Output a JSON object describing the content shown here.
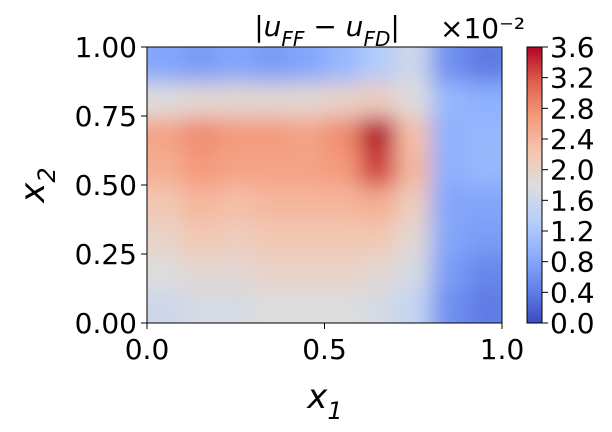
{
  "chart_data": {
    "type": "heatmap",
    "title_parts": [
      "|u",
      "FF",
      " − u",
      "FD",
      "|"
    ],
    "xlabel_parts": [
      "x",
      "1"
    ],
    "ylabel_parts": [
      "x",
      "2"
    ],
    "colorbar_offset": "×10⁻²",
    "colormap": "coolwarm",
    "x": [
      0.05,
      0.15,
      0.25,
      0.35,
      0.45,
      0.55,
      0.65,
      0.75,
      0.85,
      0.95
    ],
    "y": [
      0.0625,
      0.1875,
      0.3125,
      0.4375,
      0.5625,
      0.6875,
      0.8125,
      0.9375
    ],
    "z": [
      [
        1.6,
        1.7,
        1.7,
        1.8,
        1.8,
        1.8,
        1.7,
        1.5,
        0.6,
        0.4
      ],
      [
        1.8,
        1.9,
        1.9,
        2.0,
        2.0,
        2.0,
        1.9,
        1.7,
        0.7,
        0.5
      ],
      [
        2.0,
        2.2,
        2.1,
        2.2,
        2.2,
        2.2,
        2.2,
        1.9,
        0.8,
        0.7
      ],
      [
        2.2,
        2.4,
        2.3,
        2.4,
        2.4,
        2.4,
        2.5,
        2.1,
        0.8,
        0.8
      ],
      [
        2.5,
        2.7,
        2.6,
        2.6,
        2.6,
        2.7,
        3.3,
        2.4,
        0.9,
        1.0
      ],
      [
        2.6,
        2.8,
        2.7,
        2.7,
        2.6,
        2.8,
        3.6,
        2.3,
        0.9,
        1.0
      ],
      [
        1.8,
        1.9,
        1.9,
        1.9,
        1.9,
        2.0,
        2.1,
        1.8,
        1.0,
        0.9
      ],
      [
        0.8,
        0.7,
        0.8,
        0.7,
        0.8,
        1.0,
        1.3,
        1.6,
        0.6,
        0.4
      ]
    ],
    "xlim": [
      0,
      1
    ],
    "ylim": [
      0,
      1
    ],
    "zlim": [
      0,
      3.6
    ],
    "xticks": [
      {
        "value": 0,
        "label": "0.0"
      },
      0.5,
      {
        "value": 1,
        "label": "1.0"
      }
    ],
    "yticks": [
      {
        "value": 0,
        "label": "0.00"
      },
      0.25,
      {
        "value": 0.5,
        "label": "0.50"
      },
      0.75,
      {
        "value": 1,
        "label": "1.00"
      }
    ],
    "zticks": [
      {
        "value": 0,
        "label": "0.0"
      },
      0.4,
      0.8,
      1.2,
      1.6,
      {
        "value": 2,
        "label": "2.0"
      },
      2.4,
      2.8,
      3.2,
      3.6
    ]
  }
}
